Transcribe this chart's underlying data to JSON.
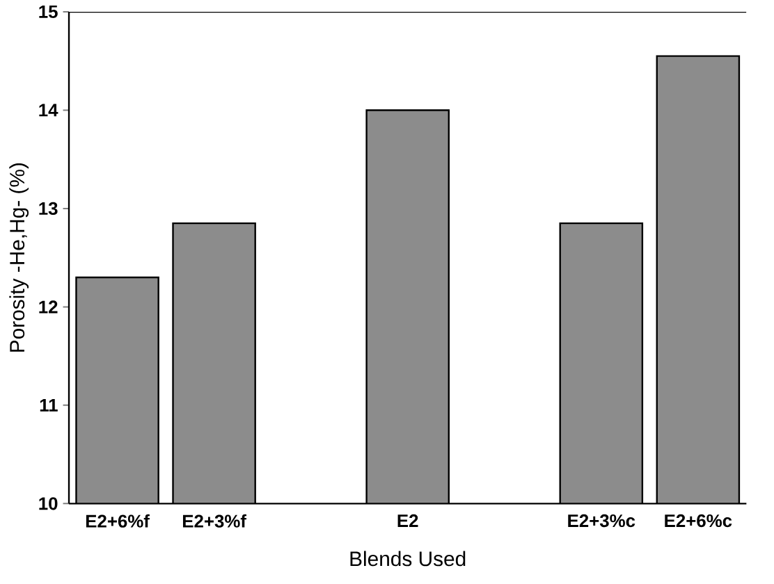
{
  "chart_data": {
    "type": "bar",
    "xlabel": "Blends Used",
    "ylabel": "Porosity -He,Hg- (%)",
    "categories": [
      "E2+6%f",
      "E2+3%f",
      null,
      "E2",
      null,
      "E2+3%c",
      "E2+6%c"
    ],
    "values": [
      12.3,
      12.85,
      null,
      14.0,
      null,
      12.85,
      14.55
    ],
    "color": "#8c8c8c",
    "ylim": [
      10,
      15
    ],
    "yticks": [
      10,
      11,
      12,
      13,
      14,
      15
    ]
  }
}
